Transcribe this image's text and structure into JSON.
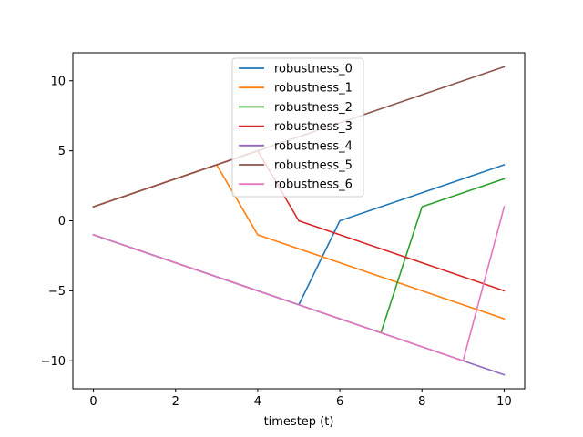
{
  "chart_data": {
    "type": "line",
    "title": "",
    "xlabel": "timestep (t)",
    "ylabel": "",
    "xlim": [
      -0.5,
      10.5
    ],
    "ylim": [
      -12,
      12
    ],
    "xticks": [
      0,
      2,
      4,
      6,
      8,
      10
    ],
    "yticks": [
      -10,
      -5,
      0,
      5,
      10
    ],
    "legend_position": "top-center",
    "grid": false,
    "x": [
      0,
      1,
      2,
      3,
      4,
      5,
      6,
      7,
      8,
      9,
      10
    ],
    "series": [
      {
        "name": "robustness_0",
        "color": "#1f77b4",
        "values": [
          -1,
          -2,
          -3,
          -4,
          -5,
          -6,
          0,
          1,
          2,
          3,
          4
        ]
      },
      {
        "name": "robustness_1",
        "color": "#ff7f0e",
        "values": [
          1,
          2,
          3,
          4,
          -1,
          -2,
          -3,
          -4,
          -5,
          -6,
          -7
        ]
      },
      {
        "name": "robustness_2",
        "color": "#2ca02c",
        "values": [
          -1,
          -2,
          -3,
          -4,
          -5,
          -6,
          -7,
          -8,
          1,
          2,
          3
        ]
      },
      {
        "name": "robustness_3",
        "color": "#d62728",
        "values": [
          1,
          2,
          3,
          4,
          5,
          0,
          -1,
          -2,
          -3,
          -4,
          -5
        ]
      },
      {
        "name": "robustness_4",
        "color": "#9467bd",
        "values": [
          -1,
          -2,
          -3,
          -4,
          -5,
          -6,
          -7,
          -8,
          -9,
          -10,
          -11
        ]
      },
      {
        "name": "robustness_5",
        "color": "#8c564b",
        "values": [
          1,
          2,
          3,
          4,
          5,
          6,
          7,
          8,
          9,
          10,
          11
        ]
      },
      {
        "name": "robustness_6",
        "color": "#e377c2",
        "values": [
          -1,
          -2,
          -3,
          -4,
          -5,
          -6,
          -7,
          -8,
          -9,
          -10,
          1
        ]
      }
    ]
  }
}
